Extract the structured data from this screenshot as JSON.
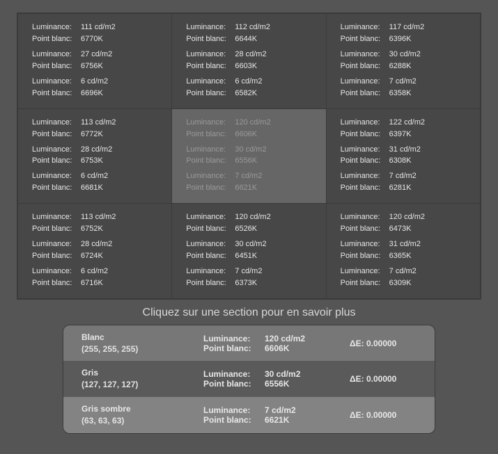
{
  "labels": {
    "luminance": "Luminance:",
    "whitepoint": "Point blanc:",
    "delta_e_prefix": "ΔE: "
  },
  "caption": "Cliquez sur une section pour en savoir plus",
  "colors": {
    "page_bg": "#555555",
    "grid_border": "#3a3a3a",
    "cell_bg": "#474747",
    "cell_highlight_bg": "#666666",
    "cell_text": "#e8e8e8",
    "cell_highlight_text": "#9a9a9a",
    "caption_text": "#d8d8d8",
    "detail_row_bg": [
      "#777777",
      "#5a5a5a",
      "#838383"
    ]
  },
  "grid": [
    [
      {
        "highlight": false,
        "readings": [
          {
            "lum": "111 cd/m2",
            "wp": "6770K"
          },
          {
            "lum": "27 cd/m2",
            "wp": "6756K"
          },
          {
            "lum": "6 cd/m2",
            "wp": "6696K"
          }
        ]
      },
      {
        "highlight": false,
        "readings": [
          {
            "lum": "112 cd/m2",
            "wp": "6644K"
          },
          {
            "lum": "28 cd/m2",
            "wp": "6603K"
          },
          {
            "lum": "6 cd/m2",
            "wp": "6582K"
          }
        ]
      },
      {
        "highlight": false,
        "readings": [
          {
            "lum": "117 cd/m2",
            "wp": "6396K"
          },
          {
            "lum": "30 cd/m2",
            "wp": "6288K"
          },
          {
            "lum": "7 cd/m2",
            "wp": "6358K"
          }
        ]
      }
    ],
    [
      {
        "highlight": false,
        "readings": [
          {
            "lum": "113 cd/m2",
            "wp": "6772K"
          },
          {
            "lum": "28 cd/m2",
            "wp": "6753K"
          },
          {
            "lum": "6 cd/m2",
            "wp": "6681K"
          }
        ]
      },
      {
        "highlight": true,
        "readings": [
          {
            "lum": "120 cd/m2",
            "wp": "6606K"
          },
          {
            "lum": "30 cd/m2",
            "wp": "6556K"
          },
          {
            "lum": "7 cd/m2",
            "wp": "6621K"
          }
        ]
      },
      {
        "highlight": false,
        "readings": [
          {
            "lum": "122 cd/m2",
            "wp": "6397K"
          },
          {
            "lum": "31 cd/m2",
            "wp": "6308K"
          },
          {
            "lum": "7 cd/m2",
            "wp": "6281K"
          }
        ]
      }
    ],
    [
      {
        "highlight": false,
        "readings": [
          {
            "lum": "113 cd/m2",
            "wp": "6752K"
          },
          {
            "lum": "28 cd/m2",
            "wp": "6724K"
          },
          {
            "lum": "6 cd/m2",
            "wp": "6716K"
          }
        ]
      },
      {
        "highlight": false,
        "readings": [
          {
            "lum": "120 cd/m2",
            "wp": "6526K"
          },
          {
            "lum": "30 cd/m2",
            "wp": "6451K"
          },
          {
            "lum": "7 cd/m2",
            "wp": "6373K"
          }
        ]
      },
      {
        "highlight": false,
        "readings": [
          {
            "lum": "120 cd/m2",
            "wp": "6473K"
          },
          {
            "lum": "31 cd/m2",
            "wp": "6365K"
          },
          {
            "lum": "7 cd/m2",
            "wp": "6309K"
          }
        ]
      }
    ]
  ],
  "details": [
    {
      "name": "Blanc",
      "rgb": "(255, 255, 255)",
      "lum": "120 cd/m2",
      "wp": "6606K",
      "de": "0.00000"
    },
    {
      "name": "Gris",
      "rgb": "(127, 127, 127)",
      "lum": "30 cd/m2",
      "wp": "6556K",
      "de": "0.00000"
    },
    {
      "name": "Gris sombre",
      "rgb": "(63, 63, 63)",
      "lum": "7 cd/m2",
      "wp": "6621K",
      "de": "0.00000"
    }
  ]
}
